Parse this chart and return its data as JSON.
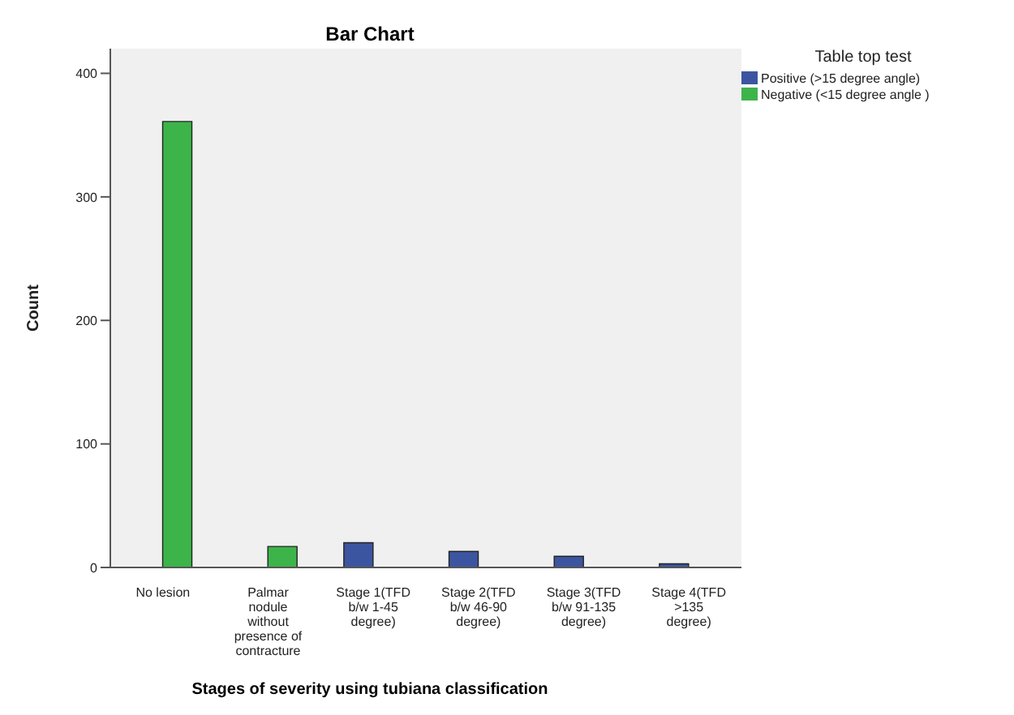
{
  "chart_data": {
    "type": "bar",
    "title": "Bar Chart",
    "xlabel": "Stages of severity using tubiana classification",
    "ylabel": "Count",
    "legend_title": "Table top test",
    "categories": [
      "No lesion",
      "Palmar nodule without presence of contracture",
      "Stage 1(TFD b/w 1-45 degree)",
      "Stage 2(TFD b/w 46-90 degree)",
      "Stage 3(TFD b/w  91-135 degree)",
      "Stage 4(TFD >135 degree)"
    ],
    "series": [
      {
        "name": "Positive (>15 degree angle)",
        "color": "#3c55a0",
        "values": [
          null,
          null,
          20,
          13,
          9,
          3
        ]
      },
      {
        "name": "Negative (<15 degree angle )",
        "color": "#3cb44a",
        "values": [
          361,
          17,
          null,
          null,
          null,
          null
        ]
      }
    ],
    "ylim": [
      0,
      420
    ],
    "yticks": [
      0,
      100,
      200,
      300,
      400
    ],
    "legend": "top right"
  }
}
